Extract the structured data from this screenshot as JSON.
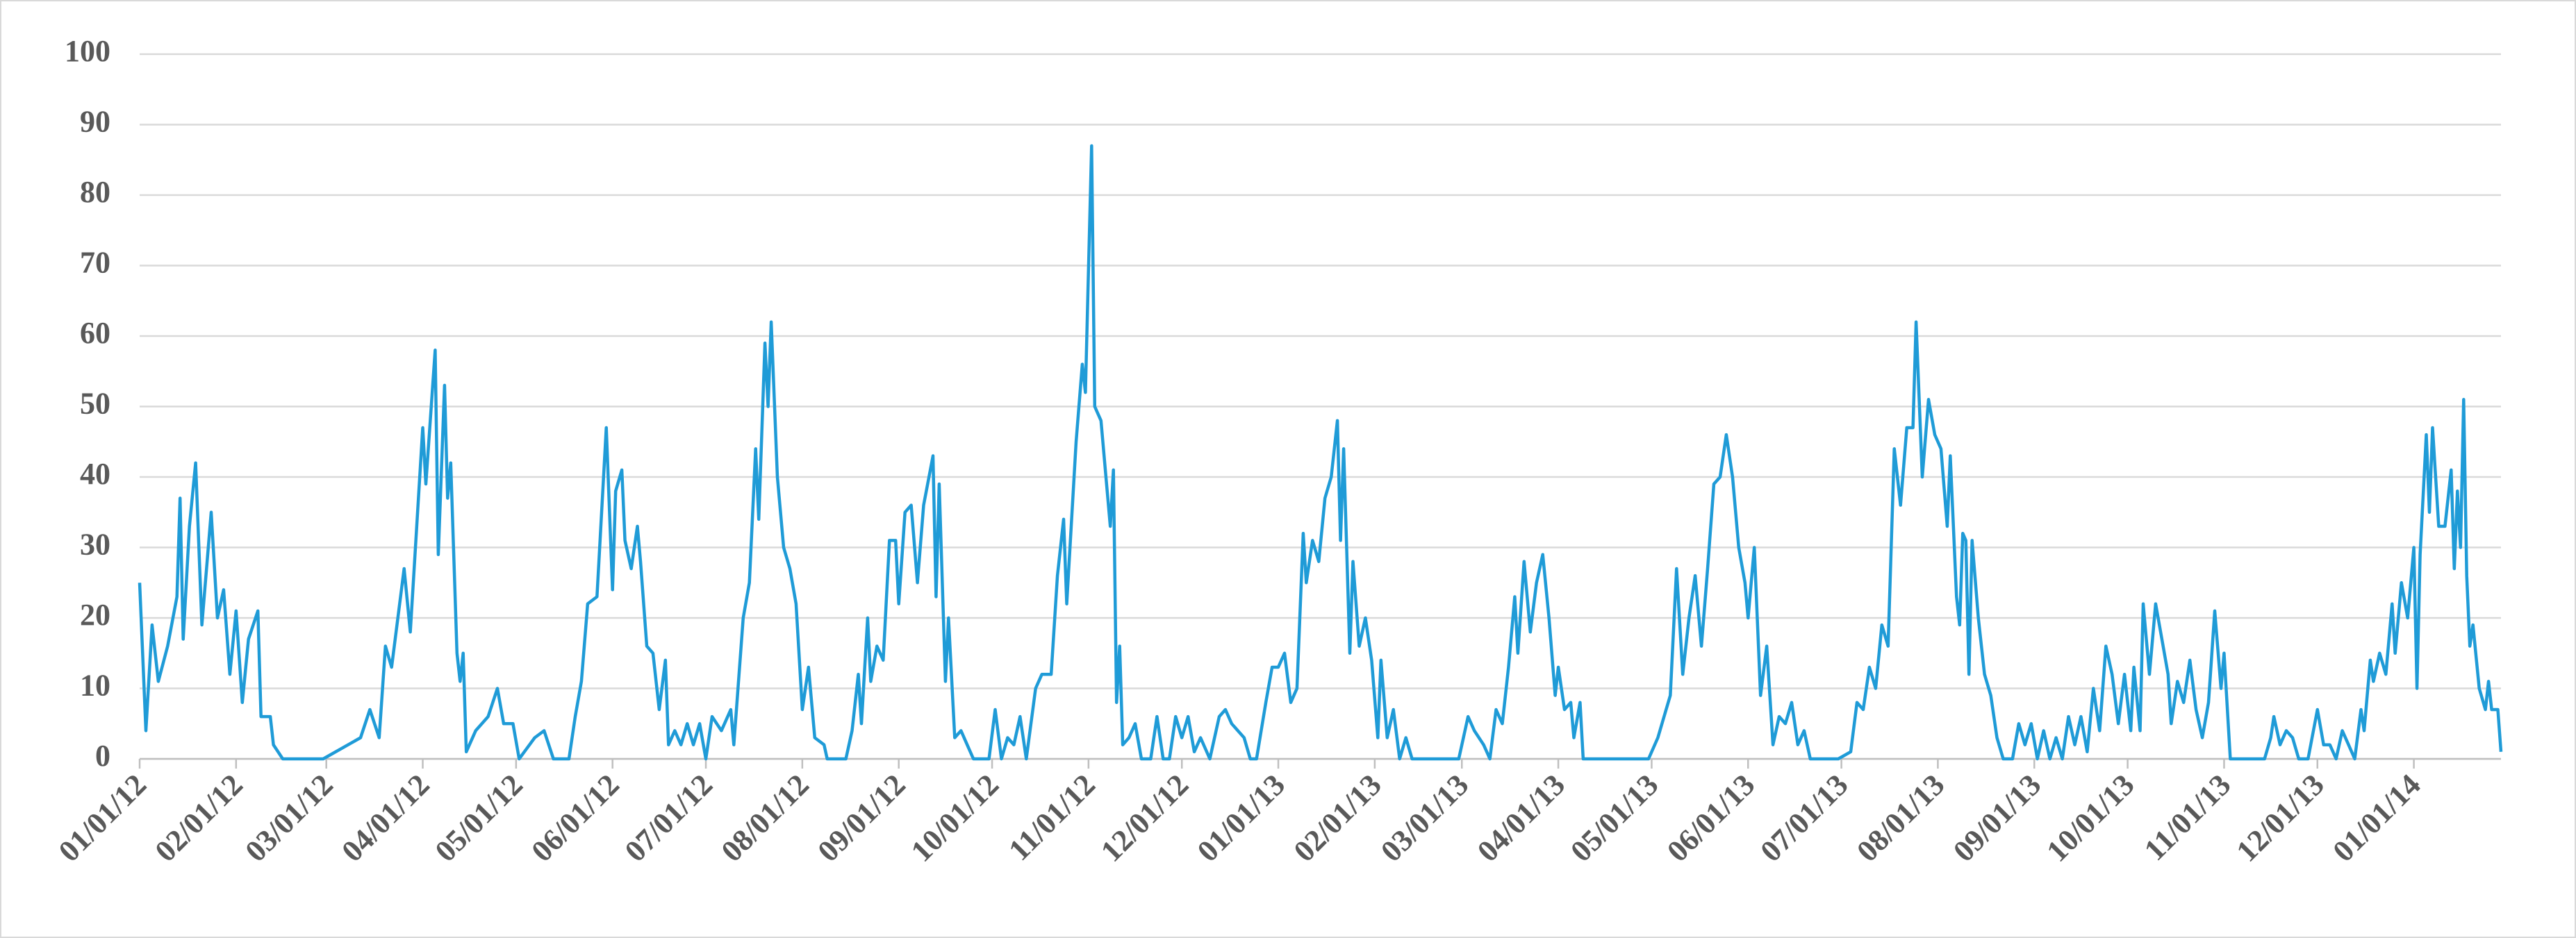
{
  "chart_data": {
    "type": "line",
    "color": "#1f9bd7",
    "grid": true,
    "ylim": [
      0,
      100
    ],
    "yticks": [
      0,
      10,
      20,
      30,
      40,
      50,
      60,
      70,
      80,
      90,
      100
    ],
    "xlim": [
      "01/01/12",
      "01/29/14"
    ],
    "xticks": [
      "01/01/12",
      "02/01/12",
      "03/01/12",
      "04/01/12",
      "05/01/12",
      "06/01/12",
      "07/01/12",
      "08/01/12",
      "09/01/12",
      "10/01/12",
      "11/01/12",
      "12/01/12",
      "01/01/13",
      "02/01/13",
      "03/01/13",
      "04/01/13",
      "05/01/13",
      "06/01/13",
      "07/01/13",
      "08/01/13",
      "09/01/13",
      "10/01/13",
      "11/01/13",
      "12/01/13",
      "01/01/14"
    ],
    "x": [
      "01/01/12",
      "01/03/12",
      "01/05/12",
      "01/07/12",
      "01/10/12",
      "01/13/12",
      "01/14/12",
      "01/15/12",
      "01/17/12",
      "01/19/12",
      "01/21/12",
      "01/24/12",
      "01/26/12",
      "01/28/12",
      "01/30/12",
      "02/01/12",
      "02/03/12",
      "02/05/12",
      "02/08/12",
      "02/09/12",
      "02/12/12",
      "02/13/12",
      "02/16/12",
      "02/29/12",
      "03/12/12",
      "03/15/12",
      "03/18/12",
      "03/20/12",
      "03/22/12",
      "03/24/12",
      "03/26/12",
      "03/28/12",
      "04/01/12",
      "04/02/12",
      "04/05/12",
      "04/06/12",
      "04/08/12",
      "04/09/12",
      "04/10/12",
      "04/12/12",
      "04/13/12",
      "04/14/12",
      "04/15/12",
      "04/18/12",
      "04/22/12",
      "04/25/12",
      "04/27/12",
      "04/30/12",
      "05/02/12",
      "05/07/12",
      "05/10/12",
      "05/13/12",
      "05/18/12",
      "05/20/12",
      "05/22/12",
      "05/24/12",
      "05/27/12",
      "05/30/12",
      "06/01/12",
      "06/02/12",
      "06/04/12",
      "06/05/12",
      "06/07/12",
      "06/09/12",
      "06/10/12",
      "06/12/12",
      "06/14/12",
      "06/16/12",
      "06/18/12",
      "06/19/12",
      "06/21/12",
      "06/23/12",
      "06/25/12",
      "06/27/12",
      "06/29/12",
      "07/01/12",
      "07/03/12",
      "07/06/12",
      "07/09/12",
      "07/10/12",
      "07/12/12",
      "07/13/12",
      "07/15/12",
      "07/17/12",
      "07/18/12",
      "07/20/12",
      "07/21/12",
      "07/22/12",
      "07/24/12",
      "07/26/12",
      "07/28/12",
      "07/30/12",
      "08/01/12",
      "08/03/12",
      "08/05/12",
      "08/08/12",
      "08/09/12",
      "08/15/12",
      "08/17/12",
      "08/19/12",
      "08/20/12",
      "08/22/12",
      "08/23/12",
      "08/25/12",
      "08/27/12",
      "08/29/12",
      "08/31/12",
      "09/01/12",
      "09/03/12",
      "09/05/12",
      "09/07/12",
      "09/09/12",
      "09/12/12",
      "09/13/12",
      "09/14/12",
      "09/16/12",
      "09/17/12",
      "09/19/12",
      "09/21/12",
      "09/23/12",
      "09/25/12",
      "09/30/12",
      "10/02/12",
      "10/04/12",
      "10/06/12",
      "10/08/12",
      "10/10/12",
      "10/12/12",
      "10/15/12",
      "10/17/12",
      "10/20/12",
      "10/22/12",
      "10/24/12",
      "10/25/12",
      "10/28/12",
      "10/30/12",
      "10/31/12",
      "11/02/12",
      "11/03/12",
      "11/05/12",
      "11/08/12",
      "11/09/12",
      "11/10/12",
      "11/11/12",
      "11/12/12",
      "11/14/12",
      "11/16/12",
      "11/18/12",
      "11/21/12",
      "11/23/12",
      "11/25/12",
      "11/27/12",
      "11/29/12",
      "12/01/12",
      "12/03/12",
      "12/05/12",
      "12/07/12",
      "12/10/12",
      "12/13/12",
      "12/15/12",
      "12/17/12",
      "12/19/12",
      "12/21/12",
      "12/23/12",
      "12/25/12",
      "12/28/12",
      "12/30/12",
      "01/01/13",
      "01/03/13",
      "01/05/13",
      "01/07/13",
      "01/09/13",
      "01/10/13",
      "01/12/13",
      "01/14/13",
      "01/16/13",
      "01/18/13",
      "01/20/13",
      "01/21/13",
      "01/22/13",
      "01/24/13",
      "01/25/13",
      "01/27/13",
      "01/29/13",
      "01/31/13",
      "02/02/13",
      "02/03/13",
      "02/05/13",
      "02/07/13",
      "02/09/13",
      "02/11/13",
      "02/13/13",
      "02/28/13",
      "03/03/13",
      "03/05/13",
      "03/08/13",
      "03/10/13",
      "03/12/13",
      "03/14/13",
      "03/16/13",
      "03/18/13",
      "03/19/13",
      "03/21/13",
      "03/23/13",
      "03/25/13",
      "03/27/13",
      "03/29/13",
      "03/31/13",
      "04/01/13",
      "04/03/13",
      "04/05/13",
      "04/06/13",
      "04/08/13",
      "04/09/13",
      "04/30/13",
      "05/03/13",
      "05/05/13",
      "05/07/13",
      "05/09/13",
      "05/11/13",
      "05/13/13",
      "05/15/13",
      "05/17/13",
      "05/19/13",
      "05/21/13",
      "05/23/13",
      "05/25/13",
      "05/27/13",
      "05/29/13",
      "05/31/13",
      "06/01/13",
      "06/03/13",
      "06/05/13",
      "06/07/13",
      "06/09/13",
      "06/11/13",
      "06/13/13",
      "06/15/13",
      "06/17/13",
      "06/19/13",
      "06/21/13",
      "06/30/13",
      "07/04/13",
      "07/06/13",
      "07/08/13",
      "07/10/13",
      "07/12/13",
      "07/14/13",
      "07/16/13",
      "07/18/13",
      "07/20/13",
      "07/22/13",
      "07/24/13",
      "07/25/13",
      "07/27/13",
      "07/29/13",
      "07/31/13",
      "08/02/13",
      "08/04/13",
      "08/05/13",
      "08/07/13",
      "08/08/13",
      "08/09/13",
      "08/10/13",
      "08/11/13",
      "08/12/13",
      "08/14/13",
      "08/16/13",
      "08/18/13",
      "08/20/13",
      "08/22/13",
      "08/25/13",
      "08/27/13",
      "08/29/13",
      "08/31/13",
      "09/02/13",
      "09/04/13",
      "09/06/13",
      "09/08/13",
      "09/10/13",
      "09/12/13",
      "09/14/13",
      "09/16/13",
      "09/18/13",
      "09/20/13",
      "09/22/13",
      "09/24/13",
      "09/26/13",
      "09/28/13",
      "09/30/13",
      "10/02/13",
      "10/03/13",
      "10/05/13",
      "10/06/13",
      "10/08/13",
      "10/10/13",
      "10/12/13",
      "10/14/13",
      "10/15/13",
      "10/17/13",
      "10/19/13",
      "10/21/13",
      "10/23/13",
      "10/25/13",
      "10/27/13",
      "10/29/13",
      "10/31/13",
      "11/01/13",
      "11/03/13",
      "11/14/13",
      "11/16/13",
      "11/17/13",
      "11/19/13",
      "11/21/13",
      "11/23/13",
      "11/25/13",
      "11/28/13",
      "12/01/13",
      "12/03/13",
      "12/05/13",
      "12/07/13",
      "12/09/13",
      "12/11/13",
      "12/13/13",
      "12/15/13",
      "12/16/13",
      "12/18/13",
      "12/19/13",
      "12/21/13",
      "12/23/13",
      "12/25/13",
      "12/26/13",
      "12/28/13",
      "12/30/13",
      "01/01/14",
      "01/02/14",
      "01/03/14",
      "01/05/14",
      "01/06/14",
      "01/07/14",
      "01/09/14",
      "01/11/14",
      "01/13/14",
      "01/14/14",
      "01/15/14",
      "01/16/14",
      "01/17/14",
      "01/18/14",
      "01/19/14",
      "01/20/14",
      "01/22/14",
      "01/24/14",
      "01/25/14",
      "01/26/14",
      "01/28/14",
      "01/29/14"
    ],
    "values": [
      25,
      4,
      19,
      11,
      16,
      23,
      37,
      17,
      33,
      42,
      19,
      35,
      20,
      24,
      12,
      21,
      8,
      17,
      21,
      6,
      6,
      2,
      0,
      0,
      3,
      7,
      3,
      16,
      13,
      20,
      27,
      18,
      47,
      39,
      58,
      29,
      53,
      37,
      42,
      15,
      11,
      15,
      1,
      4,
      6,
      10,
      5,
      5,
      0,
      3,
      4,
      0,
      0,
      6,
      11,
      22,
      23,
      47,
      24,
      38,
      41,
      31,
      27,
      33,
      28,
      16,
      15,
      7,
      14,
      2,
      4,
      2,
      5,
      2,
      5,
      0,
      6,
      4,
      7,
      2,
      14,
      20,
      25,
      44,
      34,
      59,
      50,
      62,
      40,
      30,
      27,
      22,
      7,
      13,
      3,
      2,
      0,
      0,
      4,
      12,
      5,
      20,
      11,
      16,
      14,
      31,
      31,
      22,
      35,
      36,
      25,
      36,
      43,
      23,
      39,
      11,
      20,
      3,
      4,
      2,
      0,
      0,
      7,
      0,
      3,
      2,
      6,
      0,
      10,
      12,
      12,
      26,
      34,
      22,
      45,
      56,
      52,
      87,
      50,
      48,
      33,
      41,
      8,
      16,
      2,
      3,
      5,
      0,
      0,
      6,
      0,
      0,
      6,
      3,
      6,
      1,
      3,
      0,
      6,
      7,
      5,
      4,
      3,
      0,
      0,
      8,
      13,
      13,
      15,
      8,
      10,
      32,
      25,
      31,
      28,
      37,
      40,
      48,
      31,
      44,
      15,
      28,
      16,
      20,
      14,
      3,
      14,
      3,
      7,
      0,
      3,
      0,
      0,
      6,
      4,
      2,
      0,
      7,
      5,
      13,
      23,
      15,
      28,
      18,
      25,
      29,
      20,
      9,
      13,
      7,
      8,
      3,
      8,
      0,
      0,
      3,
      6,
      9,
      27,
      12,
      20,
      26,
      16,
      27,
      39,
      40,
      46,
      40,
      30,
      25,
      20,
      30,
      9,
      16,
      2,
      6,
      5,
      8,
      2,
      4,
      0,
      0,
      1,
      8,
      7,
      13,
      10,
      19,
      16,
      44,
      36,
      47,
      47,
      62,
      40,
      51,
      46,
      44,
      33,
      43,
      23,
      19,
      32,
      31,
      12,
      31,
      20,
      12,
      9,
      3,
      0,
      0,
      5,
      2,
      5,
      0,
      4,
      0,
      3,
      0,
      6,
      2,
      6,
      1,
      10,
      4,
      16,
      12,
      5,
      12,
      4,
      13,
      4,
      22,
      12,
      22,
      17,
      12,
      5,
      11,
      8,
      14,
      7,
      3,
      8,
      21,
      10,
      15,
      0,
      0,
      3,
      6,
      2,
      4,
      3,
      0,
      0,
      7,
      2,
      2,
      0,
      4,
      2,
      0,
      7,
      4,
      14,
      11,
      15,
      12,
      22,
      15,
      25,
      20,
      30,
      10,
      29,
      46,
      35,
      47,
      33,
      33,
      41,
      27,
      38,
      30,
      51,
      26,
      16,
      19,
      10,
      7,
      11,
      7,
      7,
      1
    ]
  }
}
